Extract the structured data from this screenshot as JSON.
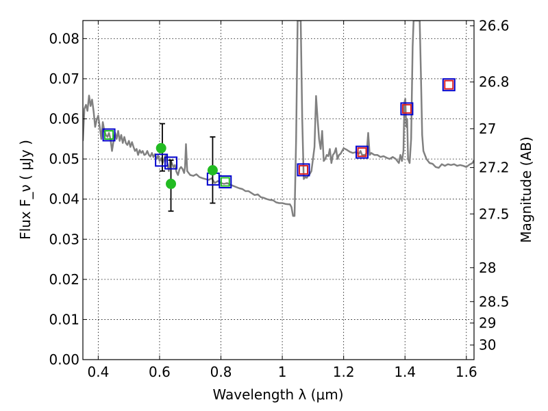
{
  "chart_data": {
    "type": "scatter",
    "title": "",
    "xlabel": "Wavelength  λ (μm)",
    "ylabel": "Flux  F_ν  ( μJy )",
    "ylabel_right": "Magnitude (AB)",
    "xlim": [
      0.35,
      1.625
    ],
    "ylim": [
      0.0,
      0.0845
    ],
    "grid": true,
    "x_ticks": [
      {
        "value": 0.4,
        "label": "0.4"
      },
      {
        "value": 0.6,
        "label": "0.6"
      },
      {
        "value": 0.8,
        "label": "0.8"
      },
      {
        "value": 1.0,
        "label": "1"
      },
      {
        "value": 1.2,
        "label": "1.2"
      },
      {
        "value": 1.4,
        "label": "1.4"
      },
      {
        "value": 1.6,
        "label": "1.6"
      }
    ],
    "y_ticks": [
      {
        "value": 0.0,
        "label": "0.00"
      },
      {
        "value": 0.01,
        "label": "0.01"
      },
      {
        "value": 0.02,
        "label": "0.02"
      },
      {
        "value": 0.03,
        "label": "0.03"
      },
      {
        "value": 0.04,
        "label": "0.04"
      },
      {
        "value": 0.05,
        "label": "0.05"
      },
      {
        "value": 0.06,
        "label": "0.06"
      },
      {
        "value": 0.07,
        "label": "0.07"
      },
      {
        "value": 0.08,
        "label": "0.08"
      }
    ],
    "mag_ticks": [
      {
        "value": 26.6,
        "label": "26.6"
      },
      {
        "value": 26.8,
        "label": "26.8"
      },
      {
        "value": 27.0,
        "label": "27"
      },
      {
        "value": 27.2,
        "label": "27.2"
      },
      {
        "value": 27.5,
        "label": "27.5"
      },
      {
        "value": 28.0,
        "label": "28"
      },
      {
        "value": 28.5,
        "label": "28.5"
      },
      {
        "value": 29.0,
        "label": "29"
      },
      {
        "value": 30.0,
        "label": "30"
      }
    ],
    "model_spectrum": {
      "color": "#808080",
      "points": [
        [
          0.35,
          0.0545
        ],
        [
          0.355,
          0.0625
        ],
        [
          0.36,
          0.0635
        ],
        [
          0.365,
          0.062
        ],
        [
          0.37,
          0.0658
        ],
        [
          0.375,
          0.0632
        ],
        [
          0.38,
          0.0648
        ],
        [
          0.385,
          0.0618
        ],
        [
          0.39,
          0.058
        ],
        [
          0.395,
          0.0598
        ],
        [
          0.4,
          0.0608
        ],
        [
          0.405,
          0.058
        ],
        [
          0.41,
          0.055
        ],
        [
          0.415,
          0.0592
        ],
        [
          0.42,
          0.057
        ],
        [
          0.425,
          0.056
        ],
        [
          0.43,
          0.0555
        ],
        [
          0.435,
          0.0565
        ],
        [
          0.44,
          0.055
        ],
        [
          0.445,
          0.052
        ],
        [
          0.45,
          0.0545
        ],
        [
          0.455,
          0.0565
        ],
        [
          0.46,
          0.055
        ],
        [
          0.465,
          0.057
        ],
        [
          0.47,
          0.0545
        ],
        [
          0.475,
          0.056
        ],
        [
          0.48,
          0.054
        ],
        [
          0.485,
          0.0555
        ],
        [
          0.49,
          0.054
        ],
        [
          0.495,
          0.0535
        ],
        [
          0.5,
          0.0545
        ],
        [
          0.505,
          0.053
        ],
        [
          0.51,
          0.0542
        ],
        [
          0.515,
          0.053
        ],
        [
          0.52,
          0.052
        ],
        [
          0.525,
          0.0525
        ],
        [
          0.53,
          0.051
        ],
        [
          0.535,
          0.0522
        ],
        [
          0.54,
          0.0515
        ],
        [
          0.545,
          0.052
        ],
        [
          0.55,
          0.051
        ],
        [
          0.555,
          0.0512
        ],
        [
          0.56,
          0.052
        ],
        [
          0.565,
          0.051
        ],
        [
          0.57,
          0.0506
        ],
        [
          0.575,
          0.0515
        ],
        [
          0.58,
          0.0505
        ],
        [
          0.585,
          0.0512
        ],
        [
          0.59,
          0.05
        ],
        [
          0.595,
          0.0508
        ],
        [
          0.6,
          0.0495
        ],
        [
          0.605,
          0.0502
        ],
        [
          0.61,
          0.049
        ],
        [
          0.615,
          0.05
        ],
        [
          0.62,
          0.051
        ],
        [
          0.625,
          0.049
        ],
        [
          0.63,
          0.047
        ],
        [
          0.635,
          0.0498
        ],
        [
          0.64,
          0.049
        ],
        [
          0.645,
          0.048
        ],
        [
          0.65,
          0.0485
        ],
        [
          0.655,
          0.0468
        ],
        [
          0.66,
          0.046
        ],
        [
          0.665,
          0.0475
        ],
        [
          0.67,
          0.048
        ],
        [
          0.675,
          0.0475
        ],
        [
          0.68,
          0.0465
        ],
        [
          0.683,
          0.048
        ],
        [
          0.686,
          0.0537
        ],
        [
          0.69,
          0.047
        ],
        [
          0.7,
          0.046
        ],
        [
          0.71,
          0.0458
        ],
        [
          0.72,
          0.0462
        ],
        [
          0.73,
          0.0455
        ],
        [
          0.74,
          0.0452
        ],
        [
          0.75,
          0.045
        ],
        [
          0.76,
          0.0448
        ],
        [
          0.77,
          0.0452
        ],
        [
          0.78,
          0.044
        ],
        [
          0.79,
          0.0445
        ],
        [
          0.8,
          0.044
        ],
        [
          0.81,
          0.0438
        ],
        [
          0.82,
          0.044
        ],
        [
          0.83,
          0.0436
        ],
        [
          0.84,
          0.0433
        ],
        [
          0.85,
          0.043
        ],
        [
          0.86,
          0.0427
        ],
        [
          0.87,
          0.0425
        ],
        [
          0.88,
          0.042
        ],
        [
          0.89,
          0.042
        ],
        [
          0.9,
          0.0415
        ],
        [
          0.91,
          0.041
        ],
        [
          0.92,
          0.0412
        ],
        [
          0.93,
          0.0405
        ],
        [
          0.94,
          0.0403
        ],
        [
          0.95,
          0.04
        ],
        [
          0.96,
          0.0398
        ],
        [
          0.97,
          0.0397
        ],
        [
          0.98,
          0.0392
        ],
        [
          0.99,
          0.039
        ],
        [
          1.0,
          0.039
        ],
        [
          1.01,
          0.0388
        ],
        [
          1.02,
          0.0387
        ],
        [
          1.025,
          0.0387
        ],
        [
          1.03,
          0.038
        ],
        [
          1.035,
          0.0358
        ],
        [
          1.04,
          0.0358
        ],
        [
          1.045,
          0.055
        ],
        [
          1.05,
          0.0845
        ],
        [
          1.055,
          0.0845
        ],
        [
          1.06,
          0.0845
        ],
        [
          1.065,
          0.06
        ],
        [
          1.07,
          0.045
        ],
        [
          1.075,
          0.0455
        ],
        [
          1.08,
          0.0453
        ],
        [
          1.085,
          0.046
        ],
        [
          1.09,
          0.0463
        ],
        [
          1.095,
          0.047
        ],
        [
          1.1,
          0.05
        ],
        [
          1.105,
          0.053
        ],
        [
          1.11,
          0.0657
        ],
        [
          1.115,
          0.06
        ],
        [
          1.12,
          0.055
        ],
        [
          1.125,
          0.0525
        ],
        [
          1.13,
          0.057
        ],
        [
          1.135,
          0.0495
        ],
        [
          1.14,
          0.05
        ],
        [
          1.145,
          0.051
        ],
        [
          1.15,
          0.0507
        ],
        [
          1.155,
          0.0525
        ],
        [
          1.16,
          0.049
        ],
        [
          1.165,
          0.051
        ],
        [
          1.17,
          0.0515
        ],
        [
          1.175,
          0.0527
        ],
        [
          1.18,
          0.05
        ],
        [
          1.185,
          0.051
        ],
        [
          1.19,
          0.0513
        ],
        [
          1.2,
          0.0527
        ],
        [
          1.21,
          0.0523
        ],
        [
          1.22,
          0.0518
        ],
        [
          1.23,
          0.0515
        ],
        [
          1.24,
          0.0517
        ],
        [
          1.25,
          0.0513
        ],
        [
          1.255,
          0.052
        ],
        [
          1.26,
          0.051
        ],
        [
          1.27,
          0.051
        ],
        [
          1.275,
          0.0515
        ],
        [
          1.28,
          0.0565
        ],
        [
          1.285,
          0.051
        ],
        [
          1.29,
          0.0515
        ],
        [
          1.3,
          0.051
        ],
        [
          1.31,
          0.051
        ],
        [
          1.32,
          0.0505
        ],
        [
          1.33,
          0.0507
        ],
        [
          1.34,
          0.0503
        ],
        [
          1.35,
          0.05
        ],
        [
          1.36,
          0.0505
        ],
        [
          1.37,
          0.05
        ],
        [
          1.38,
          0.049
        ],
        [
          1.385,
          0.051
        ],
        [
          1.39,
          0.0495
        ],
        [
          1.395,
          0.052
        ],
        [
          1.398,
          0.064
        ],
        [
          1.401,
          0.065
        ],
        [
          1.404,
          0.058
        ],
        [
          1.407,
          0.06
        ],
        [
          1.41,
          0.05
        ],
        [
          1.415,
          0.049
        ],
        [
          1.42,
          0.055
        ],
        [
          1.425,
          0.078
        ],
        [
          1.428,
          0.0845
        ],
        [
          1.44,
          0.0845
        ],
        [
          1.448,
          0.0845
        ],
        [
          1.452,
          0.071
        ],
        [
          1.456,
          0.056
        ],
        [
          1.46,
          0.052
        ],
        [
          1.465,
          0.051
        ],
        [
          1.47,
          0.05
        ],
        [
          1.475,
          0.0495
        ],
        [
          1.48,
          0.049
        ],
        [
          1.49,
          0.0488
        ],
        [
          1.5,
          0.048
        ],
        [
          1.51,
          0.0478
        ],
        [
          1.52,
          0.0487
        ],
        [
          1.53,
          0.0483
        ],
        [
          1.54,
          0.0487
        ],
        [
          1.55,
          0.0485
        ],
        [
          1.56,
          0.0487
        ],
        [
          1.57,
          0.0483
        ],
        [
          1.58,
          0.0485
        ],
        [
          1.59,
          0.0483
        ],
        [
          1.6,
          0.048
        ],
        [
          1.61,
          0.0486
        ],
        [
          1.62,
          0.049
        ],
        [
          1.625,
          0.0497
        ]
      ]
    },
    "observed_points": {
      "color": "#22bb22",
      "points": [
        {
          "x": 0.605,
          "y": 0.0527
        },
        {
          "x": 0.609,
          "y": 0.051,
          "yerr_low": 0.047,
          "yerr_high": 0.0588
        },
        {
          "x": 0.637,
          "y": 0.0438,
          "yerr_low": 0.037,
          "yerr_high": 0.0497
        },
        {
          "x": 0.773,
          "y": 0.0472,
          "yerr_low": 0.039,
          "yerr_high": 0.0555
        }
      ]
    },
    "model_band_flux": {
      "color": "#0000cc",
      "points": [
        {
          "x": 0.435,
          "y": 0.056
        },
        {
          "x": 0.606,
          "y": 0.0497
        },
        {
          "x": 0.637,
          "y": 0.049
        },
        {
          "x": 0.775,
          "y": 0.045
        },
        {
          "x": 0.814,
          "y": 0.0443
        },
        {
          "x": 1.069,
          "y": 0.0473
        },
        {
          "x": 1.26,
          "y": 0.0517
        },
        {
          "x": 1.406,
          "y": 0.0625
        },
        {
          "x": 1.543,
          "y": 0.0685
        }
      ]
    },
    "inner_markers": [
      {
        "x": 0.435,
        "y": 0.056,
        "color": "#22bb22"
      },
      {
        "x": 0.814,
        "y": 0.0443,
        "color": "#22bb22"
      },
      {
        "x": 1.069,
        "y": 0.0473,
        "color": "#dd2222"
      },
      {
        "x": 1.26,
        "y": 0.0517,
        "color": "#dd2222"
      },
      {
        "x": 1.406,
        "y": 0.0625,
        "color": "#dd2222"
      },
      {
        "x": 1.543,
        "y": 0.0685,
        "color": "#dd2222"
      }
    ]
  }
}
